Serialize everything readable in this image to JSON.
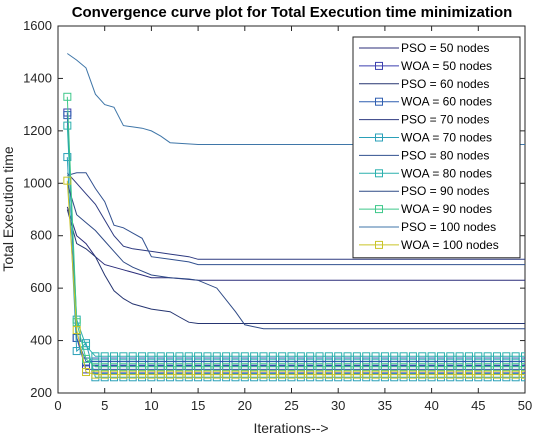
{
  "chart_data": {
    "type": "line",
    "title": "Convergence curve plot for Total Execution time minimization",
    "xlabel": "Iterations-->",
    "ylabel": "Total Execution time",
    "xlim": [
      0,
      50
    ],
    "ylim": [
      200,
      1600
    ],
    "xticks": [
      "0",
      "5",
      "10",
      "15",
      "20",
      "25",
      "30",
      "35",
      "40",
      "45",
      "50"
    ],
    "yticks": [
      "200",
      "400",
      "600",
      "800",
      "1000",
      "1200",
      "1400",
      "1600"
    ],
    "grid": false,
    "legend_position": "top-right",
    "series": [
      {
        "name": "PSO = 50 nodes",
        "color": "#2b2d7a",
        "marker": "none",
        "points": [
          [
            1,
            910
          ],
          [
            2,
            800
          ],
          [
            3,
            770
          ],
          [
            4,
            720
          ],
          [
            5,
            690
          ],
          [
            6,
            680
          ],
          [
            7,
            670
          ],
          [
            8,
            660
          ],
          [
            9,
            650
          ],
          [
            10,
            640
          ],
          [
            12,
            640
          ],
          [
            15,
            630
          ],
          [
            20,
            630
          ],
          [
            30,
            630
          ],
          [
            40,
            630
          ],
          [
            50,
            630
          ]
        ]
      },
      {
        "name": "WOA = 50 nodes",
        "color": "#3b3faf",
        "marker": "square",
        "points": [
          [
            1,
            1270
          ],
          [
            2,
            410
          ],
          [
            3,
            290
          ],
          [
            4,
            290
          ],
          [
            50,
            290
          ]
        ]
      },
      {
        "name": "PSO = 60 nodes",
        "color": "#263571",
        "marker": "none",
        "points": [
          [
            1,
            900
          ],
          [
            2,
            770
          ],
          [
            3,
            750
          ],
          [
            4,
            720
          ],
          [
            5,
            650
          ],
          [
            6,
            590
          ],
          [
            7,
            560
          ],
          [
            8,
            540
          ],
          [
            10,
            520
          ],
          [
            12,
            510
          ],
          [
            13,
            490
          ],
          [
            14,
            470
          ],
          [
            15,
            465
          ],
          [
            20,
            465
          ],
          [
            30,
            465
          ],
          [
            40,
            465
          ],
          [
            50,
            465
          ]
        ]
      },
      {
        "name": "WOA = 60 nodes",
        "color": "#2f5eb0",
        "marker": "square",
        "points": [
          [
            1,
            1260
          ],
          [
            2,
            410
          ],
          [
            3,
            320
          ],
          [
            4,
            320
          ],
          [
            50,
            320
          ]
        ]
      },
      {
        "name": "PSO = 70 nodes",
        "color": "#2e3a80",
        "marker": "none",
        "points": [
          [
            1,
            1040
          ],
          [
            2,
            1000
          ],
          [
            3,
            960
          ],
          [
            4,
            920
          ],
          [
            5,
            860
          ],
          [
            6,
            800
          ],
          [
            7,
            760
          ],
          [
            8,
            750
          ],
          [
            10,
            740
          ],
          [
            12,
            730
          ],
          [
            14,
            720
          ],
          [
            15,
            710
          ],
          [
            20,
            710
          ],
          [
            30,
            710
          ],
          [
            40,
            710
          ],
          [
            50,
            710
          ]
        ]
      },
      {
        "name": "WOA = 70 nodes",
        "color": "#2aa0b8",
        "marker": "square",
        "points": [
          [
            1,
            1100
          ],
          [
            2,
            360
          ],
          [
            3,
            390
          ],
          [
            4,
            260
          ],
          [
            50,
            260
          ]
        ]
      },
      {
        "name": "PSO = 80 nodes",
        "color": "#31508f",
        "marker": "none",
        "points": [
          [
            1,
            1030
          ],
          [
            2,
            1040
          ],
          [
            3,
            1040
          ],
          [
            4,
            980
          ],
          [
            5,
            930
          ],
          [
            6,
            840
          ],
          [
            7,
            830
          ],
          [
            8,
            810
          ],
          [
            9,
            790
          ],
          [
            10,
            720
          ],
          [
            12,
            710
          ],
          [
            14,
            700
          ],
          [
            15,
            690
          ],
          [
            20,
            690
          ],
          [
            30,
            690
          ],
          [
            40,
            690
          ],
          [
            50,
            690
          ]
        ]
      },
      {
        "name": "WOA = 80 nodes",
        "color": "#2bb0ad",
        "marker": "square",
        "points": [
          [
            1,
            1220
          ],
          [
            2,
            480
          ],
          [
            3,
            380
          ],
          [
            4,
            340
          ],
          [
            50,
            340
          ]
        ]
      },
      {
        "name": "PSO = 90 nodes",
        "color": "#2f4a86",
        "marker": "none",
        "points": [
          [
            1,
            1000
          ],
          [
            2,
            880
          ],
          [
            3,
            850
          ],
          [
            4,
            820
          ],
          [
            5,
            780
          ],
          [
            6,
            740
          ],
          [
            7,
            700
          ],
          [
            8,
            680
          ],
          [
            10,
            650
          ],
          [
            12,
            640
          ],
          [
            14,
            635
          ],
          [
            15,
            630
          ],
          [
            17,
            600
          ],
          [
            19,
            510
          ],
          [
            20,
            460
          ],
          [
            22,
            445
          ],
          [
            30,
            445
          ],
          [
            40,
            445
          ],
          [
            50,
            445
          ]
        ]
      },
      {
        "name": "WOA = 90 nodes",
        "color": "#3ec88a",
        "marker": "square",
        "points": [
          [
            1,
            1330
          ],
          [
            2,
            470
          ],
          [
            3,
            330
          ],
          [
            4,
            300
          ],
          [
            50,
            300
          ]
        ]
      },
      {
        "name": "PSO = 100 nodes",
        "color": "#3f76a8",
        "marker": "none",
        "points": [
          [
            1,
            1495
          ],
          [
            2,
            1470
          ],
          [
            3,
            1440
          ],
          [
            4,
            1340
          ],
          [
            5,
            1300
          ],
          [
            6,
            1290
          ],
          [
            7,
            1220
          ],
          [
            8,
            1215
          ],
          [
            9,
            1210
          ],
          [
            10,
            1200
          ],
          [
            11,
            1180
          ],
          [
            12,
            1155
          ],
          [
            15,
            1148
          ],
          [
            20,
            1148
          ],
          [
            30,
            1148
          ],
          [
            40,
            1148
          ],
          [
            50,
            1148
          ]
        ]
      },
      {
        "name": "WOA = 100 nodes",
        "color": "#c9c428",
        "marker": "square",
        "points": [
          [
            1,
            1010
          ],
          [
            2,
            440
          ],
          [
            3,
            280
          ],
          [
            4,
            270
          ],
          [
            50,
            270
          ]
        ]
      }
    ]
  }
}
